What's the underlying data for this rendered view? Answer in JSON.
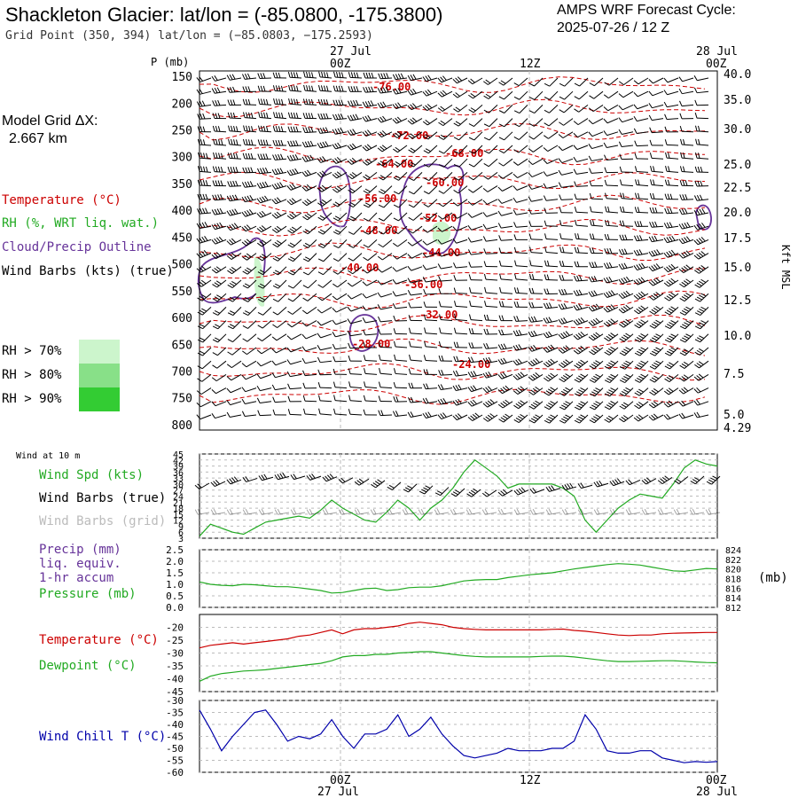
{
  "header": {
    "title": "Shackleton Glacier:  lat/lon = (-85.0800, -175.3800)",
    "grid_point": "Grid Point (350, 394) lat/lon = (−85.0803, −175.2593)",
    "cycle_line1": "AMPS WRF Forecast Cycle:",
    "cycle_line2": "2025-07-26 / 12  Z"
  },
  "time_axis": {
    "date_left": "27 Jul",
    "date_right": "28 Jul",
    "ticks": [
      "00Z",
      "12Z",
      "00Z"
    ]
  },
  "grid_info": {
    "label": "Model Grid ΔX:",
    "value": "2.667 km"
  },
  "colors": {
    "temperature": "#cc0000",
    "rh": "#22aa22",
    "cloud_outline": "#663399",
    "wind_chill": "#0000aa",
    "rh70": "#ccf5cc",
    "rh80": "#88e088",
    "rh90": "#33cc33"
  },
  "icons": [
    "wind-barb-glyph"
  ],
  "legend": {
    "temperature": "Temperature (°C)",
    "rh": "RH (%, WRT liq. wat.)",
    "cloud": "Cloud/Precip Outline",
    "wind": "Wind Barbs (kts) (true)",
    "rh70": "RH > 70%",
    "rh80": "RH > 80%",
    "rh90": "RH > 90%"
  },
  "panel_labels": {
    "wind10": "Wind at 10 m",
    "wind_spd": "Wind Spd (kts)",
    "wind_barbs_true": "Wind Barbs (true)",
    "wind_barbs_grid": "Wind Barbs (grid)",
    "precip1": "Precip (mm)",
    "precip2": "liq. equiv.",
    "precip3": "1-hr accum",
    "pressure": "Pressure (mb)",
    "pressure_unit": "(mb)",
    "temp": "Temperature (°C)",
    "dewpoint": "Dewpoint (°C)",
    "windchill": "Wind Chill T (°C)"
  },
  "chart_data": [
    {
      "type": "line",
      "panel": "vertical cross-section",
      "ylabel": "P (mb)",
      "right_label": "Kft MSL",
      "pressure_ticks": [
        150,
        200,
        250,
        300,
        350,
        400,
        450,
        500,
        550,
        600,
        650,
        700,
        750,
        800
      ],
      "ylim": [
        810,
        140
      ],
      "height_ticks": [
        "40.0",
        "35.0",
        "30.0",
        "25.0",
        "22.5",
        "20.0",
        "17.5",
        "15.0",
        "12.5",
        "10.0",
        "7.5",
        "5.0",
        "4.29"
      ],
      "temperature_contour_labels": [
        "-76.00",
        "-72.00",
        "-68.00",
        "-64.00",
        "-60.00",
        "-56.00",
        "-52.00",
        "-48.00",
        "-44.00",
        "-40.00",
        "-36.00",
        "-32.00",
        "-28.00",
        "-24.00"
      ]
    },
    {
      "type": "line",
      "panel": "wind at 10 m",
      "yticks": [
        3,
        6,
        9,
        12,
        15,
        18,
        21,
        24,
        27,
        30,
        33,
        36,
        39,
        42,
        45
      ],
      "ylim": [
        3,
        45
      ],
      "series": [
        {
          "name": "Wind Spd (kts)",
          "color": "#22aa22",
          "values": [
            4,
            10,
            8,
            6,
            5,
            8,
            11,
            12,
            13,
            14,
            13,
            17,
            22,
            18,
            15,
            12,
            11,
            16,
            22,
            18,
            12,
            18,
            22,
            28,
            36,
            42,
            38,
            34,
            28,
            30,
            30,
            30,
            30,
            28,
            24,
            12,
            6,
            12,
            18,
            22,
            25,
            24,
            23,
            30,
            38,
            42,
            40,
            39
          ]
        }
      ]
    },
    {
      "type": "line",
      "panel": "precip & pressure",
      "yticks": [
        0.0,
        0.5,
        1.0,
        1.5,
        2.0,
        2.5
      ],
      "ylim": [
        0,
        2.5
      ],
      "pressure_ticks": [
        812,
        814,
        816,
        818,
        820,
        822,
        824
      ],
      "pressure_ylim": [
        812,
        824
      ],
      "series": [
        {
          "name": "Pressure (mb)",
          "color": "#22aa22",
          "values": [
            817.3,
            816.8,
            816.6,
            816.5,
            816.8,
            816.7,
            816.5,
            816.3,
            816.3,
            816.1,
            815.8,
            815.5,
            815.0,
            815.1,
            815.5,
            815.9,
            816.0,
            815.5,
            815.7,
            816.1,
            816.2,
            816.2,
            816.5,
            817.0,
            817.5,
            817.7,
            817.8,
            817.8,
            818.2,
            818.5,
            818.8,
            819.0,
            819.2,
            819.6,
            820.0,
            820.3,
            820.6,
            820.9,
            821.1,
            821.0,
            820.8,
            820.4,
            820.0,
            819.6,
            819.5,
            819.8,
            820.1,
            820.0
          ]
        }
      ]
    },
    {
      "type": "line",
      "panel": "temperature & dewpoint",
      "yticks": [
        -45,
        -40,
        -35,
        -30,
        -25,
        -20
      ],
      "ylim": [
        -45,
        -15
      ],
      "series": [
        {
          "name": "Temperature (°C)",
          "color": "#cc0000",
          "values": [
            -28,
            -27,
            -26.5,
            -26,
            -26.5,
            -26,
            -25.5,
            -25,
            -24.5,
            -23.5,
            -23,
            -22,
            -21,
            -22.5,
            -21,
            -20.5,
            -20.5,
            -20,
            -19.5,
            -18.5,
            -18,
            -18.5,
            -19,
            -20,
            -20.5,
            -20.8,
            -21,
            -21,
            -21,
            -21,
            -21,
            -21,
            -20.8,
            -20.7,
            -21.2,
            -21.5,
            -22,
            -22.5,
            -23,
            -23.2,
            -23,
            -23,
            -22.5,
            -22.3,
            -22.2,
            -22.1,
            -22,
            -22
          ]
        },
        {
          "name": "Dewpoint (°C)",
          "color": "#22aa22",
          "values": [
            -41,
            -39,
            -38,
            -37.5,
            -37,
            -36.8,
            -36.5,
            -36,
            -35.5,
            -35,
            -34.5,
            -34,
            -33,
            -31.5,
            -31,
            -31,
            -30.5,
            -30.5,
            -30,
            -29.8,
            -29.5,
            -29.5,
            -30,
            -30.5,
            -31,
            -31.3,
            -31.5,
            -31.5,
            -31.5,
            -31.5,
            -31.5,
            -31.3,
            -31.2,
            -31.2,
            -31.5,
            -32,
            -32.5,
            -33,
            -33.3,
            -33.3,
            -33.2,
            -33.1,
            -33,
            -33,
            -33.2,
            -33.5,
            -33.7,
            -33.8
          ]
        }
      ]
    },
    {
      "type": "line",
      "panel": "wind chill",
      "yticks": [
        -60,
        -55,
        -50,
        -45,
        -40,
        -35,
        -30
      ],
      "ylim": [
        -60,
        -30
      ],
      "series": [
        {
          "name": "Wind Chill T (°C)",
          "color": "#0000aa",
          "values": [
            -34,
            -42,
            -51,
            -45,
            -40,
            -35,
            -34,
            -40,
            -47,
            -45,
            -46,
            -44,
            -38,
            -45,
            -50,
            -44,
            -44,
            -42,
            -36,
            -45,
            -42,
            -37,
            -44,
            -49,
            -53,
            -54,
            -53,
            -52,
            -50,
            -51,
            -51,
            -51,
            -50,
            -50,
            -47,
            -36,
            -42,
            -51,
            -52,
            -52,
            -51,
            -51,
            -54,
            -55,
            -56,
            -55.5,
            -55.8,
            -55.5
          ]
        }
      ]
    }
  ]
}
